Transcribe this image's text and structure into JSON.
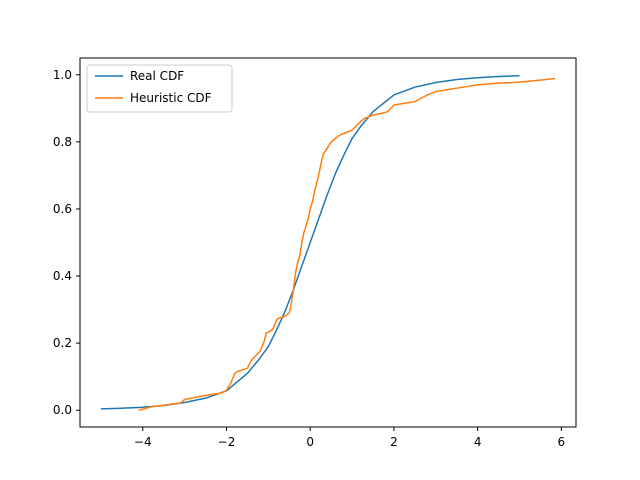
{
  "chart_data": {
    "type": "line",
    "title": "",
    "xlabel": "",
    "ylabel": "",
    "xlim": [
      -5.5,
      6.35
    ],
    "ylim": [
      -0.05,
      1.05
    ],
    "xticks": [
      -4,
      -2,
      0,
      2,
      4,
      6
    ],
    "yticks": [
      0.0,
      0.2,
      0.4,
      0.6,
      0.8,
      1.0
    ],
    "xtick_labels": [
      "−4",
      "−2",
      "0",
      "2",
      "4",
      "6"
    ],
    "ytick_labels": [
      "0.0",
      "0.2",
      "0.4",
      "0.6",
      "0.8",
      "1.0"
    ],
    "grid": false,
    "legend_position": "top-left",
    "series": [
      {
        "name": "Real CDF",
        "color": "#1f77b4",
        "x": [
          -5.0,
          -4.5,
          -4.0,
          -3.5,
          -3.0,
          -2.5,
          -2.0,
          -1.5,
          -1.2,
          -1.0,
          -0.8,
          -0.6,
          -0.4,
          -0.2,
          0.0,
          0.2,
          0.4,
          0.6,
          0.8,
          1.0,
          1.2,
          1.5,
          2.0,
          2.5,
          3.0,
          3.5,
          4.0,
          4.5,
          5.0
        ],
        "y": [
          0.004,
          0.006,
          0.009,
          0.014,
          0.023,
          0.036,
          0.058,
          0.11,
          0.155,
          0.19,
          0.24,
          0.295,
          0.36,
          0.43,
          0.5,
          0.57,
          0.64,
          0.705,
          0.76,
          0.81,
          0.845,
          0.89,
          0.94,
          0.963,
          0.977,
          0.986,
          0.991,
          0.995,
          0.997
        ]
      },
      {
        "name": "Heuristic CDF",
        "color": "#ff7f0e",
        "x": [
          -4.1,
          -3.8,
          -3.5,
          -3.1,
          -3.0,
          -2.6,
          -2.1,
          -2.0,
          -1.9,
          -1.85,
          -1.8,
          -1.75,
          -1.5,
          -1.4,
          -1.2,
          -1.1,
          -1.05,
          -0.9,
          -0.8,
          -0.75,
          -0.6,
          -0.5,
          -0.45,
          -0.4,
          -0.35,
          -0.3,
          -0.25,
          -0.2,
          -0.15,
          -0.1,
          -0.05,
          0.0,
          0.05,
          0.1,
          0.2,
          0.3,
          0.4,
          0.5,
          0.6,
          0.7,
          0.8,
          1.0,
          1.2,
          1.3,
          1.5,
          1.7,
          1.85,
          2.0,
          2.5,
          2.8,
          3.0,
          3.5,
          4.0,
          4.5,
          5.0,
          5.5,
          5.85
        ],
        "y": [
          0.0,
          0.01,
          0.015,
          0.022,
          0.032,
          0.042,
          0.052,
          0.06,
          0.08,
          0.095,
          0.11,
          0.115,
          0.125,
          0.15,
          0.175,
          0.205,
          0.23,
          0.24,
          0.27,
          0.275,
          0.28,
          0.29,
          0.32,
          0.36,
          0.41,
          0.44,
          0.46,
          0.5,
          0.53,
          0.55,
          0.57,
          0.6,
          0.62,
          0.65,
          0.7,
          0.76,
          0.78,
          0.8,
          0.81,
          0.82,
          0.825,
          0.835,
          0.86,
          0.87,
          0.88,
          0.885,
          0.89,
          0.91,
          0.92,
          0.94,
          0.95,
          0.96,
          0.97,
          0.975,
          0.978,
          0.984,
          0.989
        ]
      }
    ]
  }
}
